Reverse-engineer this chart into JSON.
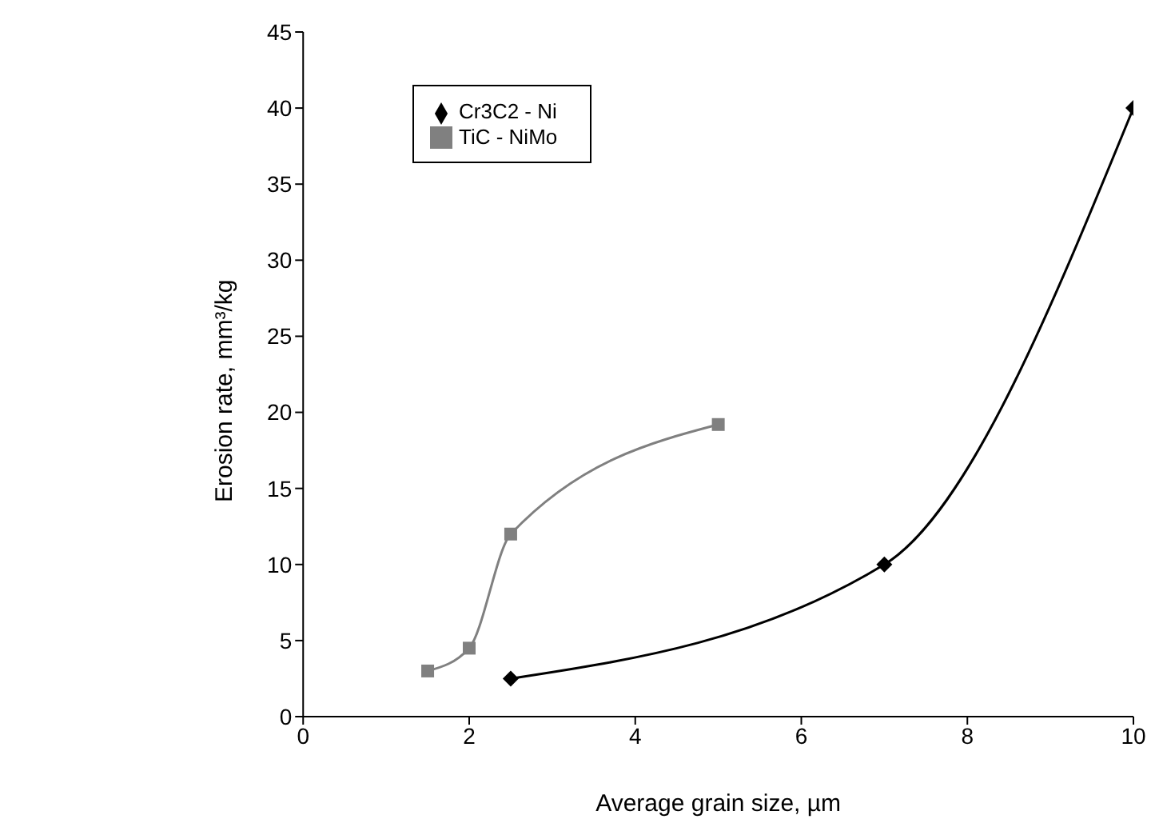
{
  "chart_data": {
    "type": "line",
    "xlabel": "Average grain size, µm",
    "ylabel": "Erosion rate, mm³/kg",
    "series": [
      {
        "name": "Cr3C2 - Ni",
        "color": "#000000",
        "marker": "diamond",
        "x": [
          2.5,
          7,
          10
        ],
        "values": [
          2.5,
          10,
          40
        ]
      },
      {
        "name": "TiC - NiMo",
        "color": "#808080",
        "marker": "square",
        "x": [
          1.5,
          2,
          2.5,
          5
        ],
        "values": [
          3,
          4.5,
          12,
          19.2
        ]
      }
    ],
    "xlim": [
      0,
      10
    ],
    "xticks": [
      0,
      2,
      4,
      6,
      8,
      10
    ],
    "ylim": [
      0,
      45
    ],
    "yticks": [
      0,
      5,
      10,
      15,
      20,
      25,
      30,
      35,
      40,
      45
    ],
    "grid": false,
    "legend": "top left"
  }
}
